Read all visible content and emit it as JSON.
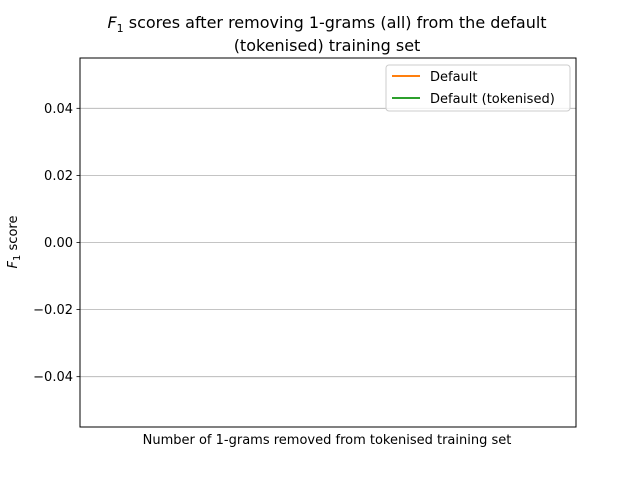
{
  "chart_data": {
    "type": "line",
    "title": {
      "line1_symbol": "F",
      "line1_subscript": "1",
      "line1_rest": " scores after removing 1-grams (all) from the default",
      "line2": "(tokenised) training set"
    },
    "xlabel": "Number of 1-grams removed from tokenised training set",
    "ylabel": {
      "symbol": "F",
      "subscript": "1",
      "rest": " score"
    },
    "ylim": [
      -0.055,
      0.055
    ],
    "yticks": [
      -0.04,
      -0.02,
      0.0,
      0.02,
      0.04
    ],
    "ytick_labels": [
      "−0.04",
      "−0.02",
      "0.00",
      "0.02",
      "0.04"
    ],
    "grid": "horizontal",
    "legend_position": "top-right",
    "series": [
      {
        "name": "Default",
        "color": "#ff7f0e",
        "x": [],
        "y": []
      },
      {
        "name": "Default (tokenised)",
        "color": "#2ca02c",
        "x": [],
        "y": []
      }
    ]
  }
}
